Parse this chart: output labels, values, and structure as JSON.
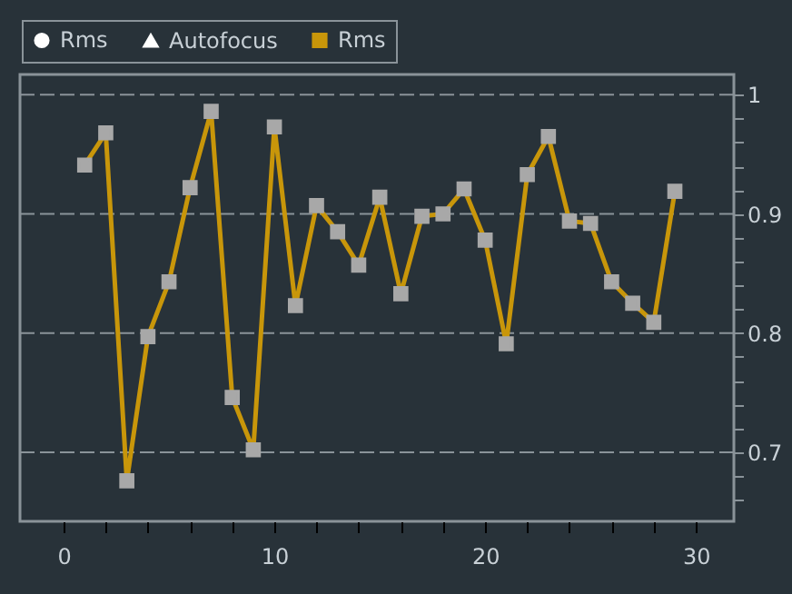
{
  "chart_data": {
    "type": "line",
    "x": [
      1,
      2,
      3,
      4,
      5,
      6,
      7,
      8,
      9,
      10,
      11,
      12,
      13,
      14,
      15,
      16,
      17,
      18,
      19,
      20,
      21,
      22,
      23,
      24,
      25,
      26,
      27,
      28,
      29
    ],
    "series": [
      {
        "name": "Rms",
        "color": "#ffffff",
        "marker": "circle",
        "values": [
          null,
          null,
          null,
          null,
          null,
          null,
          null,
          null,
          null,
          null,
          null,
          null,
          null,
          null,
          null,
          null,
          null,
          null,
          null,
          null,
          null,
          null,
          null,
          null,
          null,
          null,
          null,
          null,
          null
        ]
      },
      {
        "name": "Autofocus",
        "color": "#ffffff",
        "marker": "triangle",
        "values": [
          null,
          null,
          null,
          null,
          null,
          null,
          null,
          null,
          null,
          null,
          null,
          null,
          null,
          null,
          null,
          null,
          null,
          null,
          null,
          null,
          null,
          null,
          null,
          null,
          null,
          null,
          null,
          null,
          null
        ]
      },
      {
        "name": "Rms",
        "color": "#c8960a",
        "marker": "square",
        "values": [
          0.941,
          0.968,
          0.676,
          0.797,
          0.843,
          0.922,
          0.986,
          0.746,
          0.702,
          0.973,
          0.823,
          0.907,
          0.885,
          0.857,
          0.914,
          0.833,
          0.898,
          0.9,
          0.921,
          0.878,
          0.791,
          0.933,
          0.965,
          0.894,
          0.892,
          0.843,
          0.825,
          0.809,
          0.919
        ]
      }
    ],
    "xlim": [
      -2.07,
      31.8
    ],
    "xticks": [
      0,
      {
        "value": 2,
        "label": null
      },
      {
        "value": 4,
        "label": null
      },
      {
        "value": 6,
        "label": null
      },
      {
        "value": 8,
        "label": null
      },
      10,
      {
        "value": 12,
        "label": null
      },
      {
        "value": 14,
        "label": null
      },
      {
        "value": 16,
        "label": null
      },
      {
        "value": 18,
        "label": null
      },
      20,
      {
        "value": 22,
        "label": null
      },
      {
        "value": 24,
        "label": null
      },
      {
        "value": 26,
        "label": null
      },
      {
        "value": 28,
        "label": null
      },
      30
    ],
    "ylim": [
      0.642,
      1.017
    ],
    "yticks": [
      {
        "value": 0.66,
        "label": null
      },
      {
        "value": 0.68,
        "label": null
      },
      0.7,
      {
        "value": 0.72,
        "label": null
      },
      {
        "value": 0.74,
        "label": null
      },
      {
        "value": 0.76,
        "label": null
      },
      {
        "value": 0.78,
        "label": null
      },
      0.8,
      {
        "value": 0.82,
        "label": null
      },
      {
        "value": 0.84,
        "label": null
      },
      {
        "value": 0.86,
        "label": null
      },
      {
        "value": 0.88,
        "label": null
      },
      0.9,
      {
        "value": 0.92,
        "label": null
      },
      {
        "value": 0.94,
        "label": null
      },
      {
        "value": 0.96,
        "label": null
      },
      {
        "value": 0.98,
        "label": null
      },
      1
    ],
    "grid": "y",
    "legend": "top left",
    "line_style": "solid"
  }
}
